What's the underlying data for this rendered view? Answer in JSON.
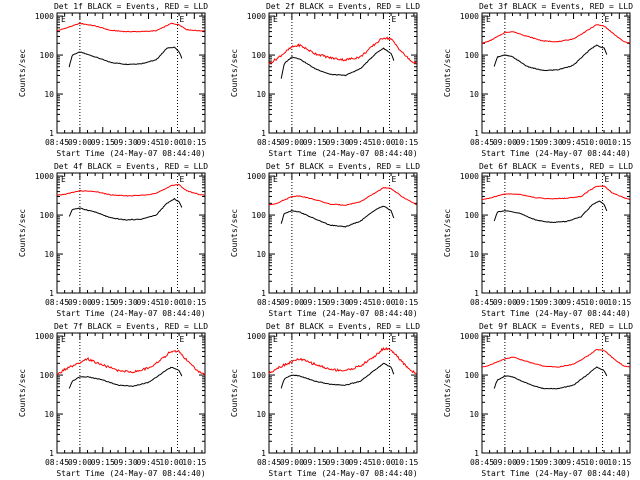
{
  "colors": {
    "events": "#000000",
    "lld": "#ff0000",
    "axis": "#000000",
    "background": "#ffffff"
  },
  "chart_data": [
    {
      "type": "line",
      "title": "Det 1f BLACK = Events, RED = LLD",
      "ylabel": "Counts/sec",
      "xlabel": "Start Time (24-May-07 08:44:40)",
      "x_ticks": [
        "08:45",
        "09:00",
        "09:15",
        "09:30",
        "09:45",
        "10:00",
        "10:15"
      ],
      "y_ticks": [
        "1",
        "10",
        "100",
        "1000"
      ],
      "ylim": [
        1,
        1200
      ],
      "xlim": [
        "08:45",
        "10:22"
      ],
      "markers": [
        "E",
        "E"
      ],
      "dotted_lines": [
        "09:00",
        "10:04"
      ],
      "series": [
        {
          "name": "Events",
          "color": "black",
          "x": [
            "08:53",
            "08:55",
            "09:00",
            "09:10",
            "09:20",
            "09:30",
            "09:40",
            "09:50",
            "09:57",
            "10:02",
            "10:05",
            "10:07"
          ],
          "y": [
            50,
            100,
            120,
            90,
            65,
            58,
            60,
            75,
            150,
            160,
            120,
            80
          ]
        },
        {
          "name": "LLD",
          "color": "red",
          "x": [
            "08:45",
            "08:50",
            "09:00",
            "09:10",
            "09:20",
            "09:30",
            "09:40",
            "09:50",
            "09:55",
            "10:00",
            "10:05",
            "10:10",
            "10:18",
            "10:22"
          ],
          "y": [
            420,
            480,
            650,
            560,
            430,
            400,
            400,
            420,
            520,
            650,
            600,
            450,
            420,
            420
          ]
        }
      ]
    },
    {
      "type": "line",
      "title": "Det 2f BLACK = Events, RED = LLD",
      "ylabel": "Counts/sec",
      "xlabel": "Start Time (24-May-07 08:44:40)",
      "x_ticks": [
        "08:45",
        "09:00",
        "09:15",
        "09:30",
        "09:45",
        "10:00",
        "10:15"
      ],
      "y_ticks": [
        "1",
        "10",
        "100",
        "1000"
      ],
      "ylim": [
        1,
        1200
      ],
      "xlim": [
        "08:45",
        "10:22"
      ],
      "markers": [
        "E",
        "E"
      ],
      "dotted_lines": [
        "09:00",
        "10:04"
      ],
      "series": [
        {
          "name": "Events",
          "color": "black",
          "x": [
            "08:53",
            "08:55",
            "09:00",
            "09:05",
            "09:15",
            "09:25",
            "09:35",
            "09:45",
            "09:55",
            "10:00",
            "10:05",
            "10:07"
          ],
          "y": [
            25,
            60,
            90,
            80,
            45,
            32,
            30,
            45,
            110,
            150,
            110,
            70
          ]
        },
        {
          "name": "LLD",
          "color": "red",
          "x": [
            "08:45",
            "08:50",
            "09:00",
            "09:05",
            "09:15",
            "09:25",
            "09:35",
            "09:45",
            "09:55",
            "10:00",
            "10:05",
            "10:12",
            "10:18",
            "10:22"
          ],
          "y": [
            60,
            80,
            160,
            180,
            110,
            85,
            75,
            90,
            200,
            280,
            260,
            120,
            70,
            60
          ]
        }
      ]
    },
    {
      "type": "line",
      "title": "Det 3f BLACK = Events, RED = LLD",
      "ylabel": "Counts/sec",
      "xlabel": "Start Time (24-May-07 08:44:40)",
      "x_ticks": [
        "08:45",
        "09:00",
        "09:15",
        "09:30",
        "09:45",
        "10:00",
        "10:15"
      ],
      "y_ticks": [
        "1",
        "10",
        "100",
        "1000"
      ],
      "ylim": [
        1,
        1200
      ],
      "xlim": [
        "08:45",
        "10:22"
      ],
      "markers": [
        "E",
        "E"
      ],
      "dotted_lines": [
        "09:00",
        "10:04"
      ],
      "series": [
        {
          "name": "Events",
          "color": "black",
          "x": [
            "08:53",
            "08:55",
            "09:00",
            "09:05",
            "09:15",
            "09:25",
            "09:35",
            "09:45",
            "09:55",
            "10:00",
            "10:05",
            "10:07"
          ],
          "y": [
            50,
            90,
            100,
            90,
            50,
            40,
            42,
            55,
            130,
            180,
            150,
            100
          ]
        },
        {
          "name": "LLD",
          "color": "red",
          "x": [
            "08:45",
            "08:50",
            "09:00",
            "09:05",
            "09:15",
            "09:25",
            "09:35",
            "09:45",
            "09:55",
            "10:00",
            "10:05",
            "10:12",
            "10:18",
            "10:22"
          ],
          "y": [
            200,
            230,
            380,
            400,
            300,
            230,
            220,
            260,
            450,
            600,
            560,
            330,
            220,
            200
          ]
        }
      ]
    },
    {
      "type": "line",
      "title": "Det 4f BLACK = Events, RED = LLD",
      "ylabel": "Counts/sec",
      "xlabel": "Start Time (24-May-07 08:44:40)",
      "x_ticks": [
        "08:45",
        "09:00",
        "09:15",
        "09:30",
        "09:45",
        "10:00",
        "10:15"
      ],
      "y_ticks": [
        "1",
        "10",
        "100",
        "1000"
      ],
      "ylim": [
        1,
        1200
      ],
      "xlim": [
        "08:45",
        "10:22"
      ],
      "markers": [
        "E",
        "E"
      ],
      "dotted_lines": [
        "09:00",
        "10:04"
      ],
      "series": [
        {
          "name": "Events",
          "color": "black",
          "x": [
            "08:53",
            "08:55",
            "09:00",
            "09:10",
            "09:20",
            "09:30",
            "09:40",
            "09:50",
            "09:57",
            "10:02",
            "10:05",
            "10:07"
          ],
          "y": [
            90,
            140,
            150,
            120,
            85,
            75,
            78,
            100,
            200,
            260,
            220,
            150
          ]
        },
        {
          "name": "LLD",
          "color": "red",
          "x": [
            "08:45",
            "08:50",
            "09:00",
            "09:10",
            "09:20",
            "09:30",
            "09:40",
            "09:50",
            "09:55",
            "10:00",
            "10:05",
            "10:10",
            "10:18",
            "10:22"
          ],
          "y": [
            320,
            340,
            420,
            400,
            330,
            310,
            320,
            360,
            450,
            580,
            600,
            420,
            340,
            320
          ]
        }
      ]
    },
    {
      "type": "line",
      "title": "Det 5f BLACK = Events, RED = LLD",
      "ylabel": "Counts/sec",
      "xlabel": "Start Time (24-May-07 08:44:40)",
      "x_ticks": [
        "08:45",
        "09:00",
        "09:15",
        "09:30",
        "09:45",
        "10:00",
        "10:15"
      ],
      "y_ticks": [
        "1",
        "10",
        "100",
        "1000"
      ],
      "ylim": [
        1,
        1200
      ],
      "xlim": [
        "08:45",
        "10:22"
      ],
      "markers": [
        "E",
        "E"
      ],
      "dotted_lines": [
        "09:00",
        "10:04"
      ],
      "series": [
        {
          "name": "Events",
          "color": "black",
          "x": [
            "08:53",
            "08:55",
            "09:00",
            "09:05",
            "09:15",
            "09:25",
            "09:35",
            "09:45",
            "09:55",
            "10:00",
            "10:05",
            "10:07"
          ],
          "y": [
            60,
            110,
            130,
            120,
            80,
            55,
            50,
            70,
            140,
            170,
            130,
            80
          ]
        },
        {
          "name": "LLD",
          "color": "red",
          "x": [
            "08:45",
            "08:50",
            "09:00",
            "09:05",
            "09:15",
            "09:25",
            "09:35",
            "09:45",
            "09:55",
            "10:00",
            "10:05",
            "10:12",
            "10:18",
            "10:22"
          ],
          "y": [
            180,
            200,
            300,
            310,
            250,
            190,
            180,
            220,
            380,
            500,
            480,
            300,
            220,
            180
          ]
        }
      ]
    },
    {
      "type": "line",
      "title": "Det 6f BLACK = Events, RED = LLD",
      "ylabel": "Counts/sec",
      "xlabel": "Start Time (24-May-07 08:44:40)",
      "x_ticks": [
        "08:45",
        "09:00",
        "09:15",
        "09:30",
        "09:45",
        "10:00",
        "10:15"
      ],
      "y_ticks": [
        "1",
        "10",
        "100",
        "1000"
      ],
      "ylim": [
        1,
        1200
      ],
      "xlim": [
        "08:45",
        "10:22"
      ],
      "markers": [
        "E",
        "E"
      ],
      "dotted_lines": [
        "09:00",
        "10:04"
      ],
      "series": [
        {
          "name": "Events",
          "color": "black",
          "x": [
            "08:53",
            "08:55",
            "09:00",
            "09:10",
            "09:20",
            "09:30",
            "09:40",
            "09:50",
            "09:57",
            "10:02",
            "10:05",
            "10:07"
          ],
          "y": [
            70,
            120,
            130,
            110,
            75,
            65,
            68,
            90,
            180,
            230,
            190,
            120
          ]
        },
        {
          "name": "LLD",
          "color": "red",
          "x": [
            "08:45",
            "08:50",
            "09:00",
            "09:10",
            "09:20",
            "09:30",
            "09:40",
            "09:50",
            "09:55",
            "10:00",
            "10:05",
            "10:10",
            "10:18",
            "10:22"
          ],
          "y": [
            250,
            270,
            350,
            340,
            280,
            260,
            270,
            300,
            420,
            540,
            560,
            380,
            280,
            250
          ]
        }
      ]
    },
    {
      "type": "line",
      "title": "Det 7f BLACK = Events, RED = LLD",
      "ylabel": "Counts/sec",
      "xlabel": "Start Time (24-May-07 08:44:40)",
      "x_ticks": [
        "08:45",
        "09:00",
        "09:15",
        "09:30",
        "09:45",
        "10:00",
        "10:15"
      ],
      "y_ticks": [
        "1",
        "10",
        "100",
        "1000"
      ],
      "ylim": [
        1,
        1200
      ],
      "xlim": [
        "08:45",
        "10:22"
      ],
      "markers": [
        "E",
        "E"
      ],
      "dotted_lines": [
        "09:00",
        "10:04"
      ],
      "series": [
        {
          "name": "Events",
          "color": "black",
          "x": [
            "08:53",
            "08:55",
            "09:00",
            "09:05",
            "09:15",
            "09:25",
            "09:35",
            "09:45",
            "09:55",
            "10:00",
            "10:05",
            "10:07"
          ],
          "y": [
            45,
            70,
            90,
            90,
            75,
            55,
            52,
            65,
            120,
            160,
            130,
            90
          ]
        },
        {
          "name": "LLD",
          "color": "red",
          "x": [
            "08:45",
            "08:50",
            "09:00",
            "09:05",
            "09:15",
            "09:25",
            "09:35",
            "09:45",
            "09:55",
            "10:00",
            "10:05",
            "10:12",
            "10:18",
            "10:22"
          ],
          "y": [
            100,
            140,
            200,
            260,
            180,
            130,
            120,
            150,
            280,
            420,
            400,
            200,
            120,
            100
          ]
        }
      ]
    },
    {
      "type": "line",
      "title": "Det 8f BLACK = Events, RED = LLD",
      "ylabel": "Counts/sec",
      "xlabel": "Start Time (24-May-07 08:44:40)",
      "x_ticks": [
        "08:45",
        "09:00",
        "09:15",
        "09:30",
        "09:45",
        "10:00",
        "10:15"
      ],
      "y_ticks": [
        "1",
        "10",
        "100",
        "1000"
      ],
      "ylim": [
        1,
        1200
      ],
      "xlim": [
        "08:45",
        "10:22"
      ],
      "markers": [
        "E",
        "E"
      ],
      "dotted_lines": [
        "09:00",
        "10:04"
      ],
      "series": [
        {
          "name": "Events",
          "color": "black",
          "x": [
            "08:53",
            "08:55",
            "09:00",
            "09:05",
            "09:15",
            "09:25",
            "09:35",
            "09:45",
            "09:55",
            "10:00",
            "10:05",
            "10:07"
          ],
          "y": [
            45,
            80,
            100,
            95,
            70,
            58,
            55,
            70,
            140,
            200,
            160,
            100
          ]
        },
        {
          "name": "LLD",
          "color": "red",
          "x": [
            "08:45",
            "08:50",
            "09:00",
            "09:05",
            "09:15",
            "09:25",
            "09:35",
            "09:45",
            "09:55",
            "10:00",
            "10:05",
            "10:12",
            "10:18",
            "10:22"
          ],
          "y": [
            110,
            150,
            220,
            260,
            190,
            140,
            130,
            170,
            320,
            480,
            450,
            220,
            130,
            110
          ]
        }
      ]
    },
    {
      "type": "line",
      "title": "Det 9f BLACK = Events, RED = LLD",
      "ylabel": "Counts/sec",
      "xlabel": "Start Time (24-May-07 08:44:40)",
      "x_ticks": [
        "08:45",
        "09:00",
        "09:15",
        "09:30",
        "09:45",
        "10:00",
        "10:15"
      ],
      "y_ticks": [
        "1",
        "10",
        "100",
        "1000"
      ],
      "ylim": [
        1,
        1200
      ],
      "xlim": [
        "08:45",
        "10:22"
      ],
      "markers": [
        "E",
        "E"
      ],
      "dotted_lines": [
        "09:00",
        "10:04"
      ],
      "series": [
        {
          "name": "Events",
          "color": "black",
          "x": [
            "08:53",
            "08:55",
            "09:00",
            "09:05",
            "09:15",
            "09:25",
            "09:35",
            "09:45",
            "09:55",
            "10:00",
            "10:05",
            "10:07"
          ],
          "y": [
            45,
            75,
            95,
            90,
            60,
            45,
            45,
            55,
            110,
            160,
            130,
            90
          ]
        },
        {
          "name": "LLD",
          "color": "red",
          "x": [
            "08:45",
            "08:50",
            "09:00",
            "09:05",
            "09:15",
            "09:25",
            "09:35",
            "09:45",
            "09:55",
            "10:00",
            "10:05",
            "10:12",
            "10:18",
            "10:22"
          ],
          "y": [
            160,
            180,
            260,
            290,
            220,
            170,
            160,
            190,
            320,
            450,
            430,
            250,
            170,
            160
          ]
        }
      ]
    }
  ]
}
